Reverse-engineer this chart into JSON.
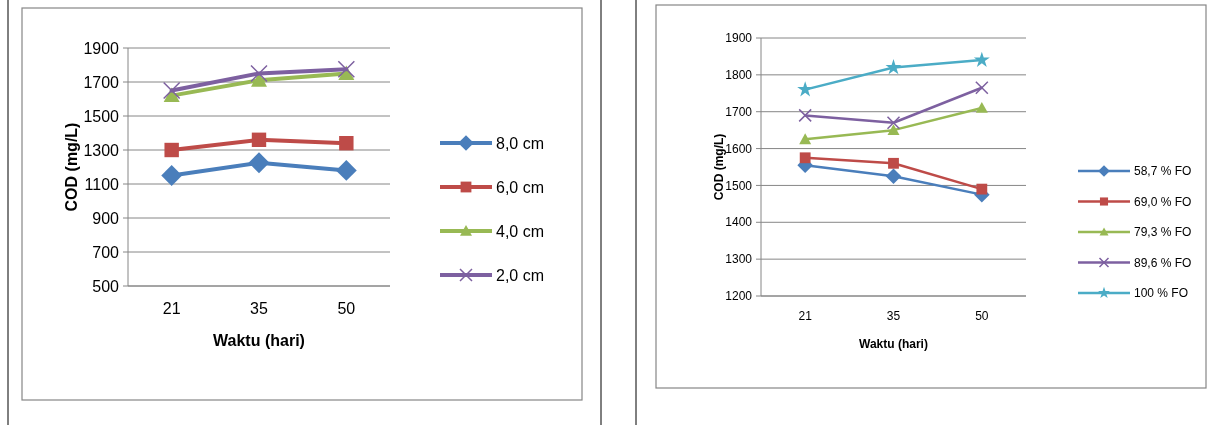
{
  "chart_data": [
    {
      "type": "line",
      "xlabel": "Waktu (hari)",
      "ylabel": "COD (mg/L)",
      "categories": [
        "21",
        "35",
        "50"
      ],
      "ylim": [
        500,
        1900
      ],
      "yticks": [
        500,
        700,
        900,
        1100,
        1300,
        1500,
        1700,
        1900
      ],
      "grid": "y",
      "legend": "right",
      "series": [
        {
          "name": "8,0 cm",
          "color": "#4a7ebb",
          "marker": "diamond",
          "values": [
            1150,
            1225,
            1180
          ]
        },
        {
          "name": "6,0 cm",
          "color": "#be4b48",
          "marker": "square",
          "values": [
            1300,
            1360,
            1340
          ]
        },
        {
          "name": "4,0 cm",
          "color": "#98b954",
          "marker": "triangle",
          "values": [
            1620,
            1710,
            1750
          ]
        },
        {
          "name": "2,0 cm",
          "color": "#7d60a0",
          "marker": "cross",
          "values": [
            1650,
            1750,
            1775
          ]
        }
      ]
    },
    {
      "type": "line",
      "xlabel": "Waktu (hari)",
      "ylabel": "COD (mg/L)",
      "categories": [
        "21",
        "35",
        "50"
      ],
      "ylim": [
        1200,
        1900
      ],
      "yticks": [
        1200,
        1300,
        1400,
        1500,
        1600,
        1700,
        1800,
        1900
      ],
      "grid": "y",
      "legend": "right",
      "series": [
        {
          "name": "58,7 % FO",
          "color": "#4a7ebb",
          "marker": "diamond",
          "values": [
            1555,
            1525,
            1475
          ]
        },
        {
          "name": "69,0 % FO",
          "color": "#be4b48",
          "marker": "square",
          "values": [
            1575,
            1560,
            1490
          ]
        },
        {
          "name": "79,3 % FO",
          "color": "#98b954",
          "marker": "triangle",
          "values": [
            1625,
            1650,
            1710
          ]
        },
        {
          "name": "89,6 % FO",
          "color": "#7d60a0",
          "marker": "cross",
          "values": [
            1690,
            1670,
            1765
          ]
        },
        {
          "name": "100 % FO",
          "color": "#4bacc6",
          "marker": "star",
          "values": [
            1760,
            1820,
            1840
          ]
        }
      ]
    }
  ]
}
